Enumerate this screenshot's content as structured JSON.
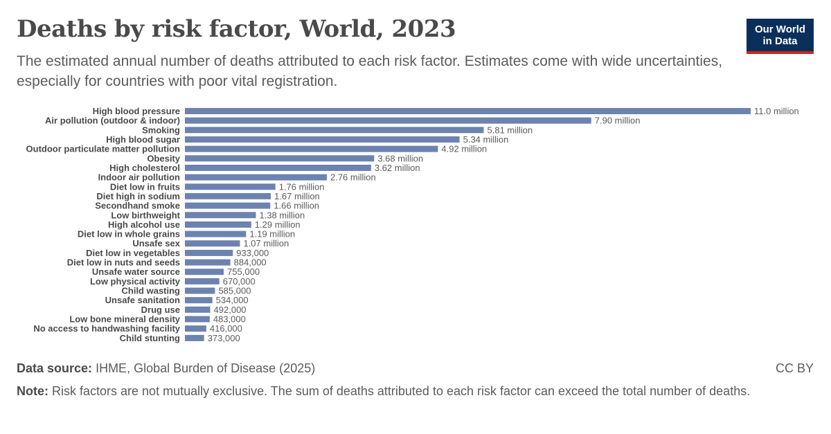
{
  "title": "Deaths by risk factor, World, 2023",
  "subtitle": "The estimated annual number of deaths attributed to each risk factor. Estimates come with wide uncertainties, especially for countries with poor vital registration.",
  "logo": {
    "line1": "Our World",
    "line2": "in Data"
  },
  "footer": {
    "source_label": "Data source:",
    "source_text": "IHME, Global Burden of Disease (2025)",
    "license": "CC BY",
    "note_label": "Note:",
    "note_text": "Risk factors are not mutually exclusive. The sum of deaths attributed to each risk factor can exceed the total number of deaths."
  },
  "colors": {
    "bar": "#6d83af",
    "logo_bg": "#0b2f5b",
    "logo_accent": "#ce261e"
  },
  "chart_data": {
    "type": "bar",
    "orientation": "horizontal",
    "title": "Deaths by risk factor, World, 2023",
    "xlim": [
      0,
      11000000
    ],
    "grid": false,
    "categories": [
      "High blood pressure",
      "Air pollution (outdoor & indoor)",
      "Smoking",
      "High blood sugar",
      "Outdoor particulate matter pollution",
      "Obesity",
      "High cholesterol",
      "Indoor air pollution",
      "Diet low in fruits",
      "Diet high in sodium",
      "Secondhand smoke",
      "Low birthweight",
      "High alcohol use",
      "Diet low in whole grains",
      "Unsafe sex",
      "Diet low in vegetables",
      "Diet low in nuts and seeds",
      "Unsafe water source",
      "Low physical activity",
      "Child wasting",
      "Unsafe sanitation",
      "Drug use",
      "Low bone mineral density",
      "No access to handwashing facility",
      "Child stunting"
    ],
    "values": [
      11000000,
      7900000,
      5810000,
      5340000,
      4920000,
      3680000,
      3620000,
      2760000,
      1760000,
      1670000,
      1660000,
      1380000,
      1290000,
      1190000,
      1070000,
      933000,
      884000,
      755000,
      670000,
      585000,
      534000,
      492000,
      483000,
      416000,
      373000
    ],
    "value_labels": [
      "11.0 million",
      "7.90 million",
      "5.81 million",
      "5.34 million",
      "4.92 million",
      "3.68 million",
      "3.62 million",
      "2.76 million",
      "1.76 million",
      "1.67 million",
      "1.66 million",
      "1.38 million",
      "1.29 million",
      "1.19 million",
      "1.07 million",
      "933,000",
      "884,000",
      "755,000",
      "670,000",
      "585,000",
      "534,000",
      "492,000",
      "483,000",
      "416,000",
      "373,000"
    ]
  }
}
